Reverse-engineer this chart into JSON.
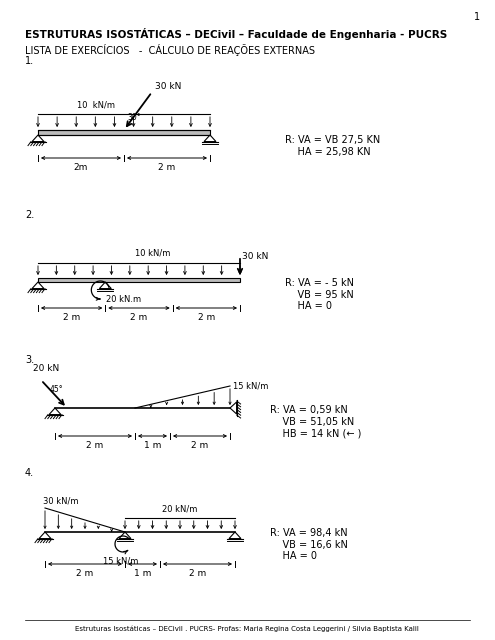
{
  "page_number": "1",
  "title": "ESTRUTURAS ISOSTÁTICAS – DECivil – Faculdade de Engenharia - PUCRS",
  "subtitle": "LISTA DE EXERCÍCIOS   -  CÁLCULO DE REAÇÕES EXTERNAS",
  "footer": "Estruturas Isostáticas – DECivil . PUCRS- Profas: Maria Regina Costa Leggerini / Silvia Baptista Kalil",
  "p1_result": "R: VA = VB 27,5 KN\n    HA = 25,98 KN",
  "p2_result": "R: VA = - 5 kN\n    VB = 95 kN\n    HA = 0",
  "p3_result": "R: VA = 0,59 kN\n    VB = 51,05 kN\n    HB = 14 kN (← )",
  "p4_result": "R: VA = 98,4 kN\n    VB = 16,6 kN\n    HA = 0",
  "bg_color": "#ffffff",
  "line_color": "#000000",
  "text_color": "#000000"
}
